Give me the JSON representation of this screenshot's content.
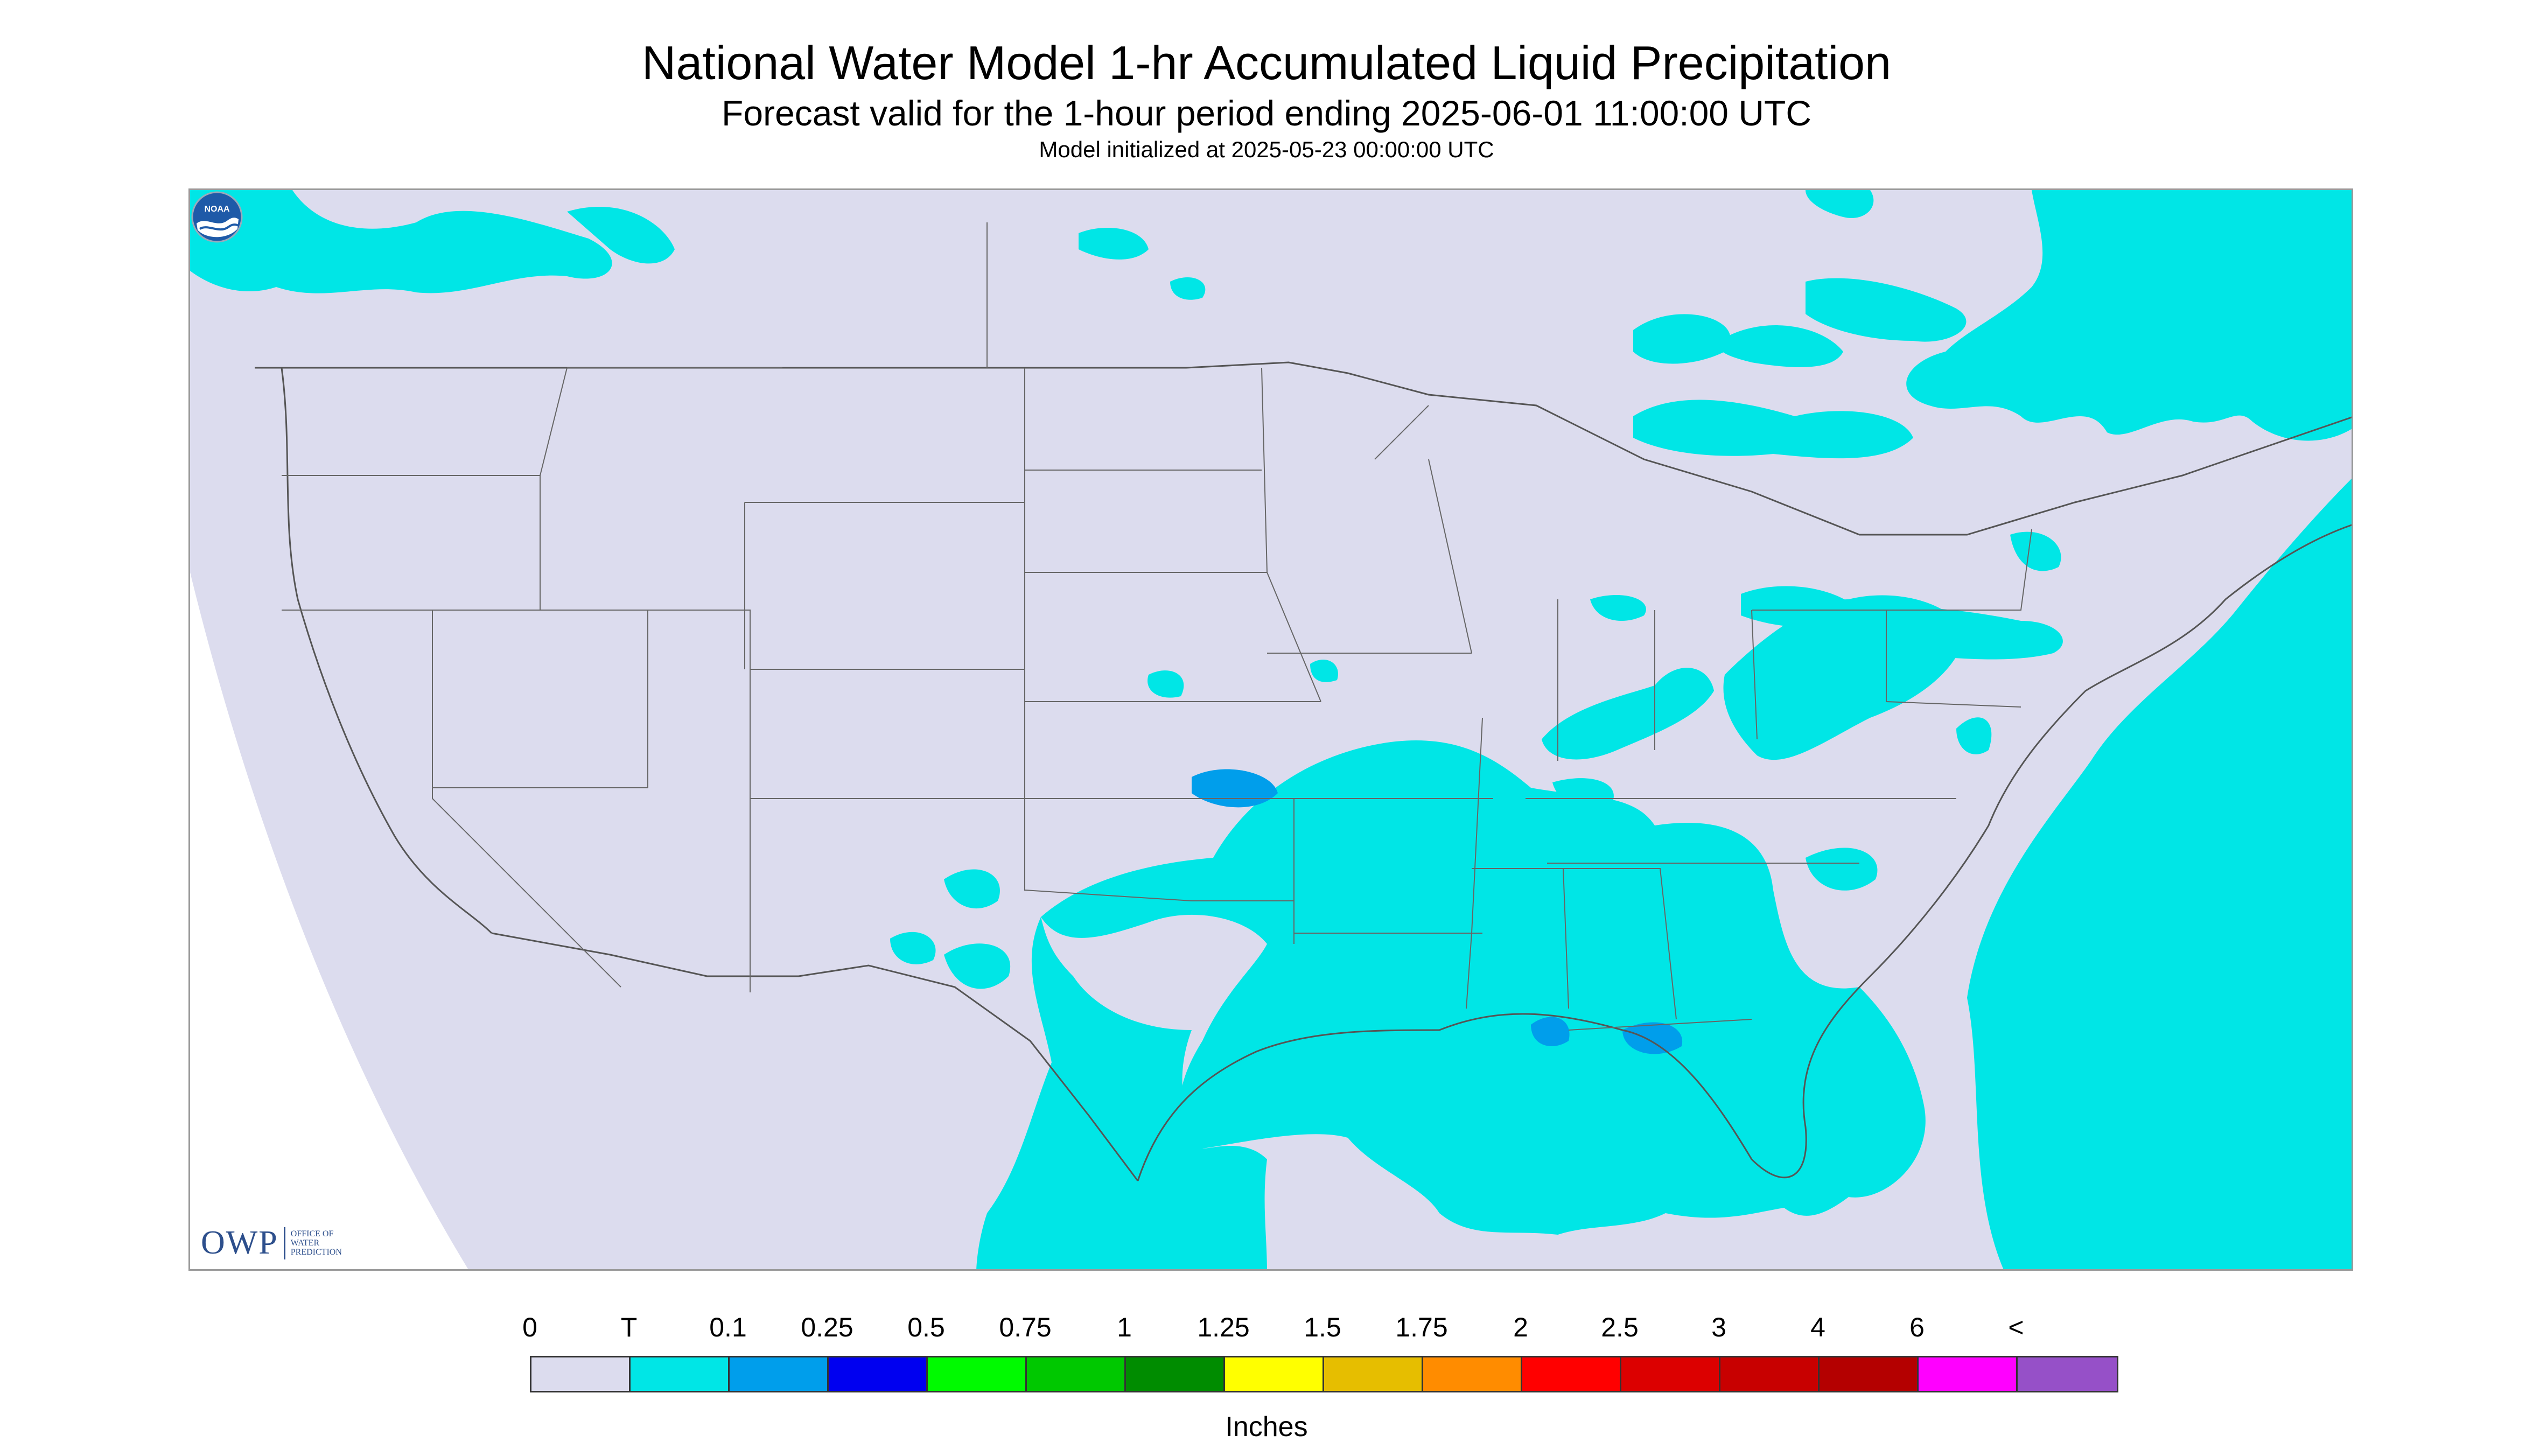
{
  "title": "National Water Model 1-hr Accumulated Liquid Precipitation",
  "subtitle": "Forecast valid for the 1-hour period ending 2025-06-01 11:00:00 UTC",
  "init_line": "Model initialized at 2025-05-23 00:00:00 UTC",
  "logos": {
    "owp": {
      "mark": "OWP",
      "text_lines": [
        "OFFICE OF",
        "WATER",
        "PREDICTION"
      ]
    },
    "noaa": {
      "text": "NOAA",
      "icon": "noaa-logo-icon"
    }
  },
  "legend": {
    "labels": [
      "0",
      "T",
      "0.1",
      "0.25",
      "0.5",
      "0.75",
      "1",
      "1.25",
      "1.5",
      "1.75",
      "2",
      "2.5",
      "3",
      "4",
      "6",
      "<"
    ],
    "colors": [
      "#dcdcee",
      "#00e6e6",
      "#009eeb",
      "#0000f0",
      "#00fa00",
      "#00c800",
      "#008c00",
      "#ffff00",
      "#e6be00",
      "#ff8c00",
      "#ff0000",
      "#dc0000",
      "#c80000",
      "#b40000",
      "#ff00ff",
      "#9650c8"
    ],
    "units": "Inches"
  },
  "colors": {
    "land": "#dcdcee",
    "no_data": "#ffffff",
    "trace": "#00e6e6",
    "light": "#009eeb",
    "border": "#555555"
  }
}
